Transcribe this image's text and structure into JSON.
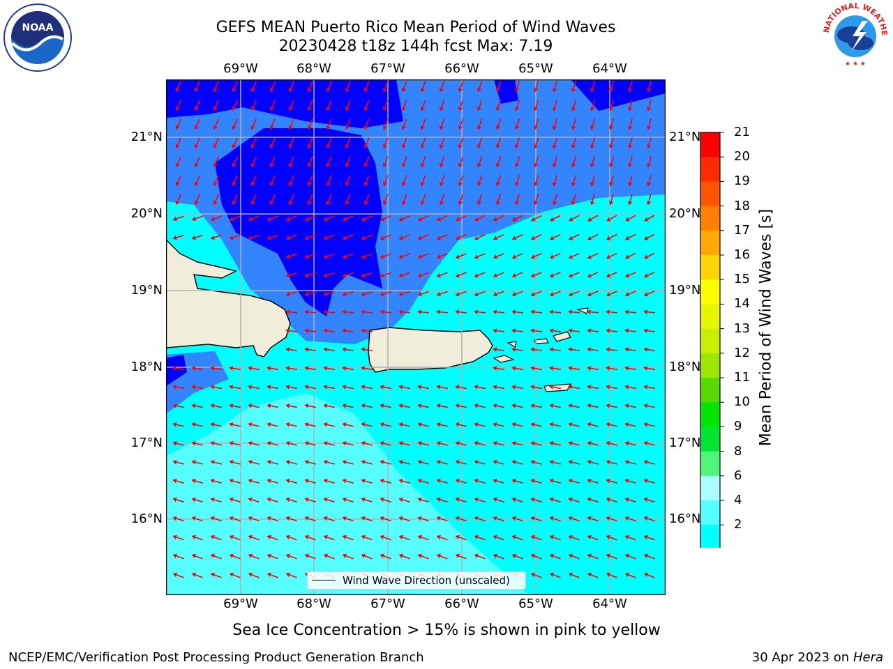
{
  "title_line1": "GEFS MEAN Puerto Rico Mean Period of Wind Waves",
  "title_line2": "20230428 t18z 144h fcst   Max: 7.19",
  "lon_ticks": [
    "69°W",
    "68°W",
    "67°W",
    "66°W",
    "65°W",
    "64°W"
  ],
  "lat_ticks": [
    "21°N",
    "20°N",
    "19°N",
    "18°N",
    "17°N",
    "16°N"
  ],
  "legend_label": "Wind Wave Direction (unscaled)",
  "colorbar": {
    "title": "Mean Period of Wind Waves [s]",
    "ticks": [
      "21",
      "20",
      "19",
      "18",
      "17",
      "16",
      "15",
      "14",
      "13",
      "12",
      "11",
      "10",
      "9",
      "8",
      "6",
      "4",
      "2"
    ],
    "colors": [
      "#ff0000",
      "#ff2a00",
      "#ff5500",
      "#ff8000",
      "#ffaa00",
      "#ffd500",
      "#ffff00",
      "#e6f500",
      "#c8f000",
      "#9ce600",
      "#5ad900",
      "#00e600",
      "#00e633",
      "#50f57a",
      "#aaffff",
      "#55ffff",
      "#00ffff",
      "#0080ff",
      "#0000ff"
    ],
    "extend_color": "#0000ff"
  },
  "map_colors": {
    "dark_blue": "#0000ff",
    "mid_blue": "#3385ff",
    "cyan": "#00ffff",
    "light_cyan": "#55ffff",
    "land": "#f0eedb",
    "arrow": "#ff0000"
  },
  "caption": "Sea Ice Concentration > 15% is shown in pink to yellow",
  "footer_left": "NCEP/EMC/Verification Post Processing Product Generation Branch",
  "footer_right_date": "30 Apr 2023 on ",
  "footer_right_host": "Hera",
  "logos": {
    "noaa": "NOAA",
    "nws": "NATIONAL WEATHER SERVICE"
  }
}
